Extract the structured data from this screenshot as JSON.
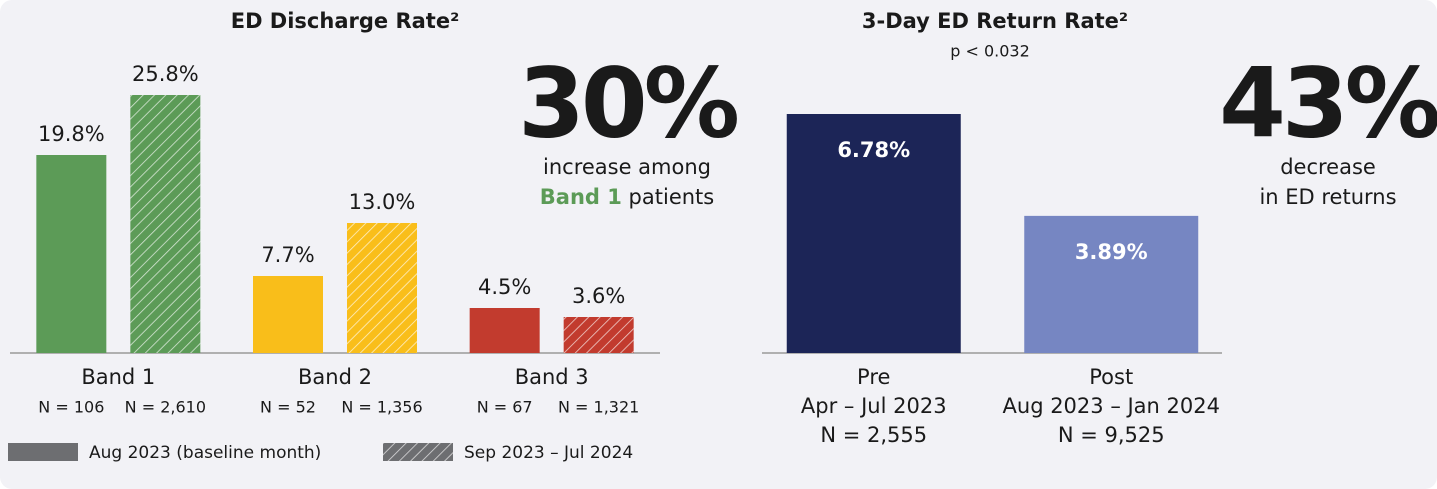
{
  "chart_data": [
    {
      "type": "bar",
      "title": "ED Discharge Rate²",
      "categories": [
        "Band 1",
        "Band 2",
        "Band 3"
      ],
      "category_colors": [
        "#5c9b57",
        "#f9be1a",
        "#c23b2e"
      ],
      "series": [
        {
          "name": "Aug 2023 (baseline month)",
          "color": "#6d6e71",
          "pattern": "solid",
          "values": [
            19.8,
            7.7,
            4.5
          ],
          "value_labels": [
            "19.8%",
            "7.7%",
            "4.5%"
          ],
          "n_labels": [
            "N = 106",
            "N = 52",
            "N = 67"
          ]
        },
        {
          "name": "Sep 2023 – Jul 2024",
          "color": "#6d6e71",
          "pattern": "hatch",
          "values": [
            25.8,
            13.0,
            3.6
          ],
          "value_labels": [
            "25.8%",
            "13.0%",
            "3.6%"
          ],
          "n_labels": [
            "N = 2,610",
            "N = 1,356",
            "N = 1,321"
          ]
        }
      ],
      "annotation": {
        "big": "30%",
        "big_color": "#3a3f97",
        "line1": "increase among",
        "highlight": "Band 1",
        "highlight_color": "#5c9b57",
        "line2": "patients"
      }
    },
    {
      "type": "bar",
      "title": "3-Day ED Return Rate²",
      "subtitle": "p < 0.032",
      "categories": [
        "Pre",
        "Post"
      ],
      "periods": [
        "Apr – Jul 2023",
        "Aug 2023 – Jan 2024"
      ],
      "n_labels": [
        "N = 2,555",
        "N = 9,525"
      ],
      "colors": [
        "#1c2557",
        "#7686c2"
      ],
      "values": [
        6.78,
        3.89
      ],
      "value_labels": [
        "6.78%",
        "3.89%"
      ],
      "annotation": {
        "big": "43%",
        "big_color": "#3cb6d4",
        "line1": "decrease",
        "line2": "in ED returns"
      }
    }
  ]
}
